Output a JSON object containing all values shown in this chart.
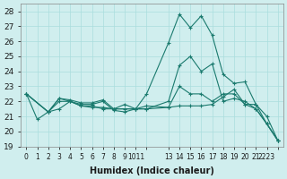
{
  "xlabel": "Humidex (Indice chaleur)",
  "bg_color": "#d0eeee",
  "line_color": "#1a7a6e",
  "grid_color": "#aadddd",
  "xlim": [
    -0.5,
    23.5
  ],
  "ylim": [
    19,
    28.5
  ],
  "yticks": [
    19,
    20,
    21,
    22,
    23,
    24,
    25,
    26,
    27,
    28
  ],
  "xtick_positions": [
    0,
    1,
    2,
    3,
    4,
    5,
    6,
    7,
    8,
    9,
    10,
    11,
    13,
    14,
    15,
    16,
    17,
    18,
    19,
    20,
    21,
    22,
    23
  ],
  "xtick_labels": [
    "0",
    "1",
    "2",
    "3",
    "4",
    "5",
    "6",
    "7",
    "8",
    "9",
    "1011",
    "",
    "13",
    "14",
    "15",
    "16",
    "17",
    "18",
    "19",
    "20",
    "21",
    "2223",
    ""
  ],
  "lines": [
    {
      "x": [
        0,
        1,
        2,
        3,
        4,
        5,
        6,
        7,
        8,
        9,
        10,
        11,
        13,
        14,
        15,
        16,
        17,
        18,
        19,
        20,
        21,
        22,
        23
      ],
      "y": [
        22.5,
        20.8,
        21.3,
        22.2,
        22.1,
        21.9,
        21.9,
        22.1,
        21.5,
        21.8,
        21.5,
        22.5,
        25.9,
        27.8,
        26.9,
        27.7,
        26.4,
        23.8,
        23.2,
        23.3,
        21.8,
        20.5,
        19.4
      ]
    },
    {
      "x": [
        0,
        2,
        3,
        4,
        5,
        6,
        7,
        8,
        9,
        10,
        11,
        13,
        14,
        15,
        16,
        17,
        18,
        19,
        20,
        21,
        22,
        23
      ],
      "y": [
        22.5,
        21.3,
        22.2,
        22.0,
        21.8,
        21.8,
        22.0,
        21.4,
        21.3,
        21.5,
        21.5,
        22.0,
        24.4,
        25.0,
        24.0,
        24.5,
        22.0,
        22.2,
        22.0,
        21.5,
        20.5,
        19.4
      ]
    },
    {
      "x": [
        0,
        2,
        3,
        4,
        5,
        6,
        7,
        8,
        10,
        11,
        13,
        14,
        15,
        16,
        17,
        18,
        19,
        20,
        21,
        22,
        23
      ],
      "y": [
        22.5,
        21.3,
        22.0,
        22.0,
        21.7,
        21.7,
        21.5,
        21.5,
        21.5,
        21.7,
        21.6,
        23.0,
        22.5,
        22.5,
        22.0,
        22.5,
        22.5,
        21.8,
        21.8,
        21.0,
        19.4
      ]
    },
    {
      "x": [
        0,
        2,
        3,
        4,
        5,
        6,
        7,
        8,
        9,
        10,
        11,
        13,
        14,
        15,
        16,
        17,
        18,
        19,
        20,
        21,
        22,
        23
      ],
      "y": [
        22.5,
        21.3,
        21.5,
        22.0,
        21.7,
        21.6,
        21.6,
        21.5,
        21.5,
        21.5,
        21.5,
        21.6,
        21.7,
        21.7,
        21.7,
        21.8,
        22.3,
        22.8,
        21.8,
        21.5,
        20.5,
        19.4
      ]
    }
  ]
}
